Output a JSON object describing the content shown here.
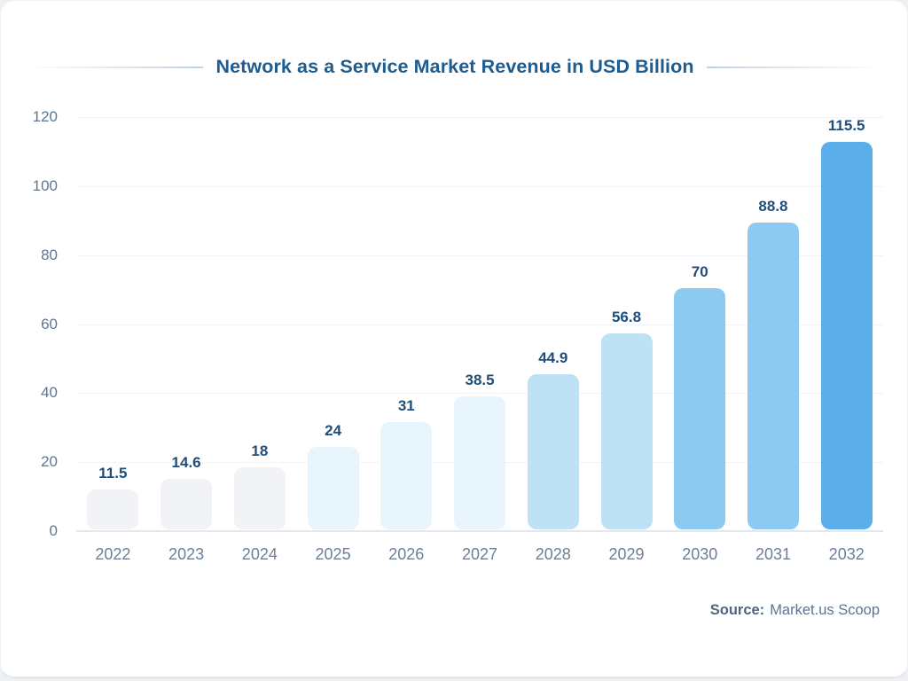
{
  "title": "Network as a Service Market Revenue in USD Billion",
  "source": {
    "label": "Source:",
    "value": "Market.us Scoop"
  },
  "colors": {
    "title_text": "#1d5c90",
    "value_label_text": "#1f4e7b",
    "axis_label_text": "#5e7694",
    "year_label_text": "#6d8096",
    "gridline": "#f0f3f7",
    "baseline": "#e4e8ee",
    "card_background": "#ffffff"
  },
  "chart_data": {
    "type": "bar",
    "title": "Network as a Service Market Revenue in USD Billion",
    "xlabel": "",
    "ylabel": "",
    "ylim": [
      0,
      120
    ],
    "yticks": [
      0,
      20,
      40,
      60,
      80,
      100,
      120
    ],
    "grid": true,
    "legend": false,
    "categories": [
      "2022",
      "2023",
      "2024",
      "2025",
      "2026",
      "2027",
      "2028",
      "2029",
      "2030",
      "2031",
      "2032"
    ],
    "values": [
      11.5,
      14.6,
      18,
      24,
      31,
      38.5,
      44.9,
      56.8,
      70,
      88.8,
      115.5
    ],
    "value_labels": [
      "11.5",
      "14.6",
      "18",
      "24",
      "31",
      "38.5",
      "44.9",
      "56.8",
      "70",
      "88.8",
      "115.5"
    ],
    "bar_colors": [
      "#f1f3f6",
      "#f1f3f6",
      "#f1f3f6",
      "#e9f5fd",
      "#e9f5fd",
      "#e9f5fd",
      "#bfe1f6",
      "#bfe1f6",
      "#8dcaf1",
      "#8dcaf1",
      "#5caeea"
    ]
  }
}
